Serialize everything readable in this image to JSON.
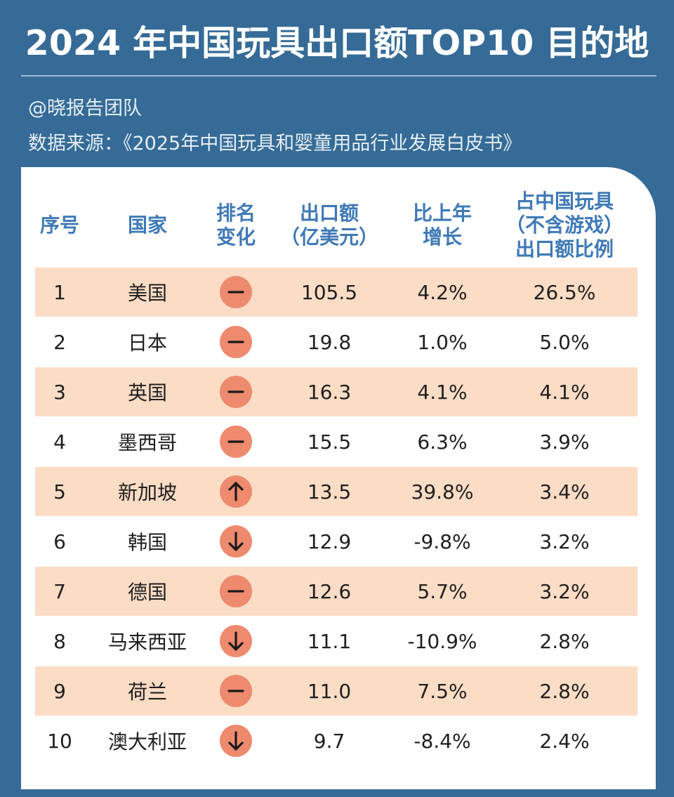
{
  "title": "2024 年中国玩具出口额TOP10 目的地",
  "author": "@晓报告团队",
  "source": "数据来源：《2025年中国玩具和婴童用品行业发展白皮书》",
  "columns": [
    "序号",
    "国家",
    "排名\n变化",
    "出口额\n（亿美元）",
    "比上年\n增长",
    "占中国玩具\n（不含游戏）\n出口额比例"
  ],
  "colors": {
    "background": "#356b96",
    "header_text": "#3f79b6",
    "row_shade": "#fbdcc5",
    "badge": "#ee8a6e"
  },
  "rows": [
    {
      "rank": "1",
      "country": "美国",
      "change": "dash-icon",
      "export": "105.5",
      "growth": "4.2%",
      "share": "26.5%"
    },
    {
      "rank": "2",
      "country": "日本",
      "change": "dash-icon",
      "export": "19.8",
      "growth": "1.0%",
      "share": "5.0%"
    },
    {
      "rank": "3",
      "country": "英国",
      "change": "dash-icon",
      "export": "16.3",
      "growth": "4.1%",
      "share": "4.1%"
    },
    {
      "rank": "4",
      "country": "墨西哥",
      "change": "dash-icon",
      "export": "15.5",
      "growth": "6.3%",
      "share": "3.9%"
    },
    {
      "rank": "5",
      "country": "新加坡",
      "change": "arrow-up-icon",
      "export": "13.5",
      "growth": "39.8%",
      "share": "3.4%"
    },
    {
      "rank": "6",
      "country": "韩国",
      "change": "arrow-down-icon",
      "export": "12.9",
      "growth": "-9.8%",
      "share": "3.2%"
    },
    {
      "rank": "7",
      "country": "德国",
      "change": "dash-icon",
      "export": "12.6",
      "growth": "5.7%",
      "share": "3.2%"
    },
    {
      "rank": "8",
      "country": "马来西亚",
      "change": "arrow-down-icon",
      "export": "11.1",
      "growth": "-10.9%",
      "share": "2.8%"
    },
    {
      "rank": "9",
      "country": "荷兰",
      "change": "dash-icon",
      "export": "11.0",
      "growth": "7.5%",
      "share": "2.8%"
    },
    {
      "rank": "10",
      "country": "澳大利亚",
      "change": "arrow-down-icon",
      "export": "9.7",
      "growth": "-8.4%",
      "share": "2.4%"
    }
  ]
}
